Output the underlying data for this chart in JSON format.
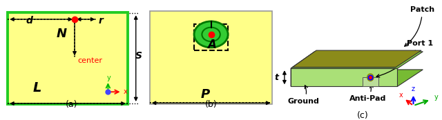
{
  "fig_width": 6.4,
  "fig_height": 1.74,
  "bg_color": "#ffffff",
  "panel_a": {
    "yellow": "#ffff88",
    "green_border": "#22cc22",
    "label": "(a)"
  },
  "panel_b": {
    "yellow": "#ffff88",
    "label": "(b)"
  },
  "panel_c": {
    "patch_color": "#8b8b1a",
    "ground_color": "#6aaa20",
    "side_color": "#88cc44",
    "label": "(c)"
  }
}
